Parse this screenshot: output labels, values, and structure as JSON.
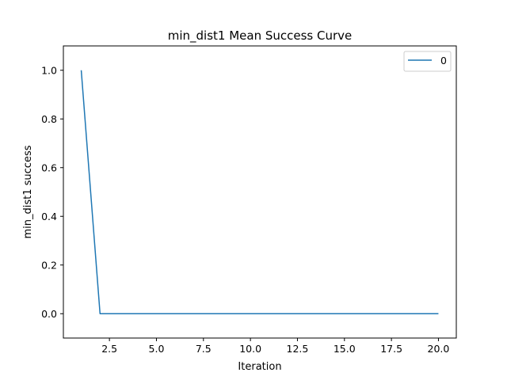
{
  "chart_data": {
    "type": "line",
    "title": "min_dist1 Mean Success Curve",
    "xlabel": "Iteration",
    "ylabel": "min_dist1 success",
    "xlim": [
      0.05,
      20.95
    ],
    "ylim": [
      -0.1,
      1.1
    ],
    "xticks": [
      2.5,
      5.0,
      7.5,
      10.0,
      12.5,
      15.0,
      17.5,
      20.0
    ],
    "xtick_labels": [
      "2.5",
      "5.0",
      "7.5",
      "10.0",
      "12.5",
      "15.0",
      "17.5",
      "20.0"
    ],
    "yticks": [
      0.0,
      0.2,
      0.4,
      0.6,
      0.8,
      1.0
    ],
    "ytick_labels": [
      "0.0",
      "0.2",
      "0.4",
      "0.6",
      "0.8",
      "1.0"
    ],
    "grid": false,
    "legend": "top-right",
    "series": [
      {
        "name": "0",
        "color": "#1f77b4",
        "x": [
          1,
          2,
          3,
          4,
          5,
          6,
          7,
          8,
          9,
          10,
          11,
          12,
          13,
          14,
          15,
          16,
          17,
          18,
          19,
          20
        ],
        "y": [
          1.0,
          0,
          0,
          0,
          0,
          0,
          0,
          0,
          0,
          0,
          0,
          0,
          0,
          0,
          0,
          0,
          0,
          0,
          0,
          0
        ]
      }
    ]
  }
}
